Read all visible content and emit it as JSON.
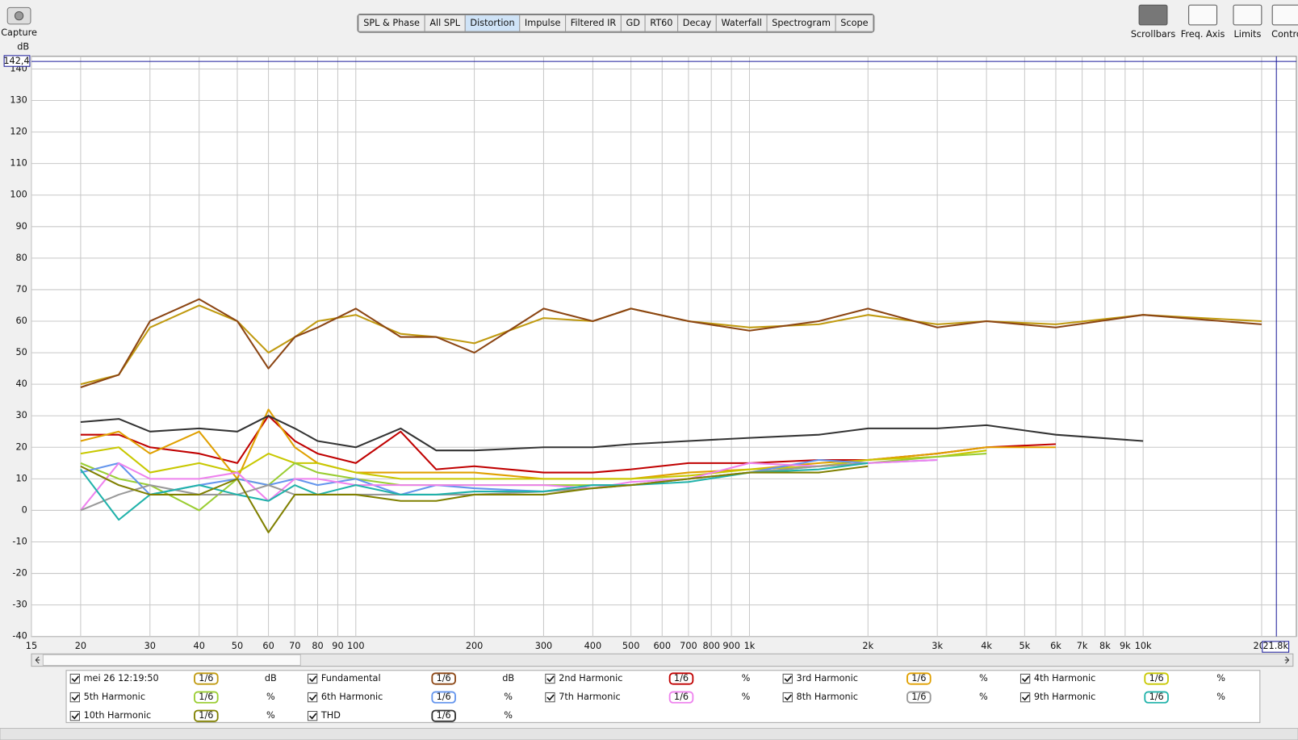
{
  "capture": "Capture",
  "toolbar": {
    "tabs": [
      "SPL & Phase",
      "All SPL",
      "Distortion",
      "Impulse",
      "Filtered IR",
      "GD",
      "RT60",
      "Decay",
      "Waterfall",
      "Spectrogram",
      "Scope"
    ],
    "active": 2
  },
  "right_buttons": [
    "Scrollbars",
    "Freq. Axis",
    "Limits",
    "Controls"
  ],
  "chart_data": {
    "type": "line",
    "ylabel": "dB",
    "log_x": true,
    "grid": true,
    "xlim": [
      15,
      24500
    ],
    "ylim": [
      -40,
      144
    ],
    "yticks": [
      -40,
      -30,
      -20,
      -10,
      0,
      10,
      20,
      30,
      40,
      50,
      60,
      70,
      80,
      90,
      100,
      110,
      120,
      130,
      140
    ],
    "xticks": [
      15,
      20,
      30,
      40,
      50,
      60,
      70,
      80,
      90,
      100,
      200,
      300,
      400,
      500,
      600,
      700,
      800,
      900,
      {
        "value": 1000,
        "label": "1k"
      },
      {
        "value": 2000,
        "label": "2k"
      },
      {
        "value": 3000,
        "label": "3k"
      },
      {
        "value": 4000,
        "label": "4k"
      },
      {
        "value": 5000,
        "label": "5k"
      },
      {
        "value": 6000,
        "label": "6k"
      },
      {
        "value": 7000,
        "label": "7k"
      },
      {
        "value": 8000,
        "label": "8k"
      },
      {
        "value": 9000,
        "label": "9k"
      },
      {
        "value": 10000,
        "label": "10k"
      },
      {
        "value": 20000,
        "label": "20k"
      }
    ],
    "cursor": {
      "x": 21800,
      "x_label": "21.8k",
      "y": 142.4,
      "y_label": "142,4"
    },
    "x": [
      20,
      25,
      30,
      40,
      50,
      60,
      70,
      80,
      100,
      130,
      160,
      200,
      300,
      400,
      500,
      700,
      1000,
      1500,
      2000,
      3000,
      4000,
      6000,
      10000,
      20000
    ],
    "series": [
      {
        "name": "mei 26 12:19:50",
        "unit": "dB",
        "smoothing": "1/6",
        "color": "#c09a10",
        "values": [
          40,
          43,
          58,
          65,
          60,
          50,
          55,
          60,
          62,
          56,
          55,
          53,
          61,
          60,
          64,
          60,
          58,
          59,
          62,
          59,
          60,
          59,
          62,
          60
        ]
      },
      {
        "name": "Fundamental",
        "unit": "dB",
        "smoothing": "1/6",
        "color": "#8b4513",
        "values": [
          39,
          43,
          60,
          67,
          60,
          45,
          55,
          58,
          64,
          55,
          55,
          50,
          64,
          60,
          64,
          60,
          57,
          60,
          64,
          58,
          60,
          58,
          62,
          59
        ]
      },
      {
        "name": "2nd Harmonic",
        "unit": "%",
        "smoothing": "1/6",
        "color": "#c00000",
        "values": [
          24,
          24,
          20,
          18,
          15,
          30,
          22,
          18,
          15,
          25,
          13,
          14,
          12,
          12,
          13,
          15,
          15,
          16,
          16,
          18,
          20,
          21,
          null,
          null
        ]
      },
      {
        "name": "3rd Harmonic",
        "unit": "%",
        "smoothing": "1/6",
        "color": "#e0a000",
        "values": [
          22,
          25,
          18,
          25,
          10,
          32,
          20,
          15,
          12,
          12,
          12,
          12,
          10,
          10,
          10,
          12,
          13,
          15,
          16,
          18,
          20,
          20,
          null,
          null
        ]
      },
      {
        "name": "4th Harmonic",
        "unit": "%",
        "smoothing": "1/6",
        "color": "#c8c800",
        "values": [
          18,
          20,
          12,
          15,
          12,
          18,
          15,
          15,
          12,
          10,
          10,
          10,
          10,
          10,
          10,
          11,
          13,
          14,
          16,
          17,
          19,
          null,
          null,
          null
        ]
      },
      {
        "name": "5th Harmonic",
        "unit": "%",
        "smoothing": "1/6",
        "color": "#9acd32",
        "values": [
          15,
          10,
          8,
          0,
          10,
          8,
          15,
          12,
          10,
          8,
          8,
          8,
          8,
          8,
          8,
          10,
          12,
          14,
          15,
          17,
          18,
          null,
          null,
          null
        ]
      },
      {
        "name": "6th Harmonic",
        "unit": "%",
        "smoothing": "1/6",
        "color": "#6495ed",
        "values": [
          12,
          15,
          5,
          8,
          10,
          8,
          10,
          8,
          10,
          5,
          8,
          7,
          6,
          8,
          8,
          10,
          12,
          16,
          15,
          16,
          null,
          null,
          null,
          null
        ]
      },
      {
        "name": "7th Harmonic",
        "unit": "%",
        "smoothing": "1/6",
        "color": "#ee82ee",
        "values": [
          0,
          15,
          10,
          10,
          12,
          3,
          10,
          10,
          8,
          8,
          8,
          8,
          8,
          7,
          9,
          10,
          15,
          14,
          15,
          16,
          null,
          null,
          null,
          null
        ]
      },
      {
        "name": "8th Harmonic",
        "unit": "%",
        "smoothing": "1/6",
        "color": "#999999",
        "values": [
          0,
          5,
          8,
          5,
          5,
          8,
          5,
          5,
          5,
          5,
          5,
          5,
          6,
          7,
          8,
          10,
          12,
          14,
          15,
          null,
          null,
          null,
          null,
          null
        ]
      },
      {
        "name": "9th Harmonic",
        "unit": "%",
        "smoothing": "1/6",
        "color": "#20b2aa",
        "values": [
          13,
          -3,
          5,
          8,
          5,
          3,
          8,
          5,
          8,
          5,
          5,
          6,
          6,
          8,
          8,
          9,
          12,
          13,
          15,
          null,
          null,
          null,
          null,
          null
        ]
      },
      {
        "name": "10th Harmonic",
        "unit": "%",
        "smoothing": "1/6",
        "color": "#808000",
        "values": [
          14,
          8,
          5,
          5,
          10,
          -7,
          5,
          5,
          5,
          3,
          3,
          5,
          5,
          7,
          8,
          10,
          12,
          12,
          14,
          null,
          null,
          null,
          null,
          null
        ]
      },
      {
        "name": "THD",
        "unit": "%",
        "smoothing": "1/6",
        "color": "#333333",
        "values": [
          28,
          29,
          25,
          26,
          25,
          30,
          26,
          22,
          20,
          26,
          19,
          19,
          20,
          20,
          21,
          22,
          23,
          24,
          26,
          26,
          27,
          24,
          22,
          null
        ]
      }
    ]
  }
}
